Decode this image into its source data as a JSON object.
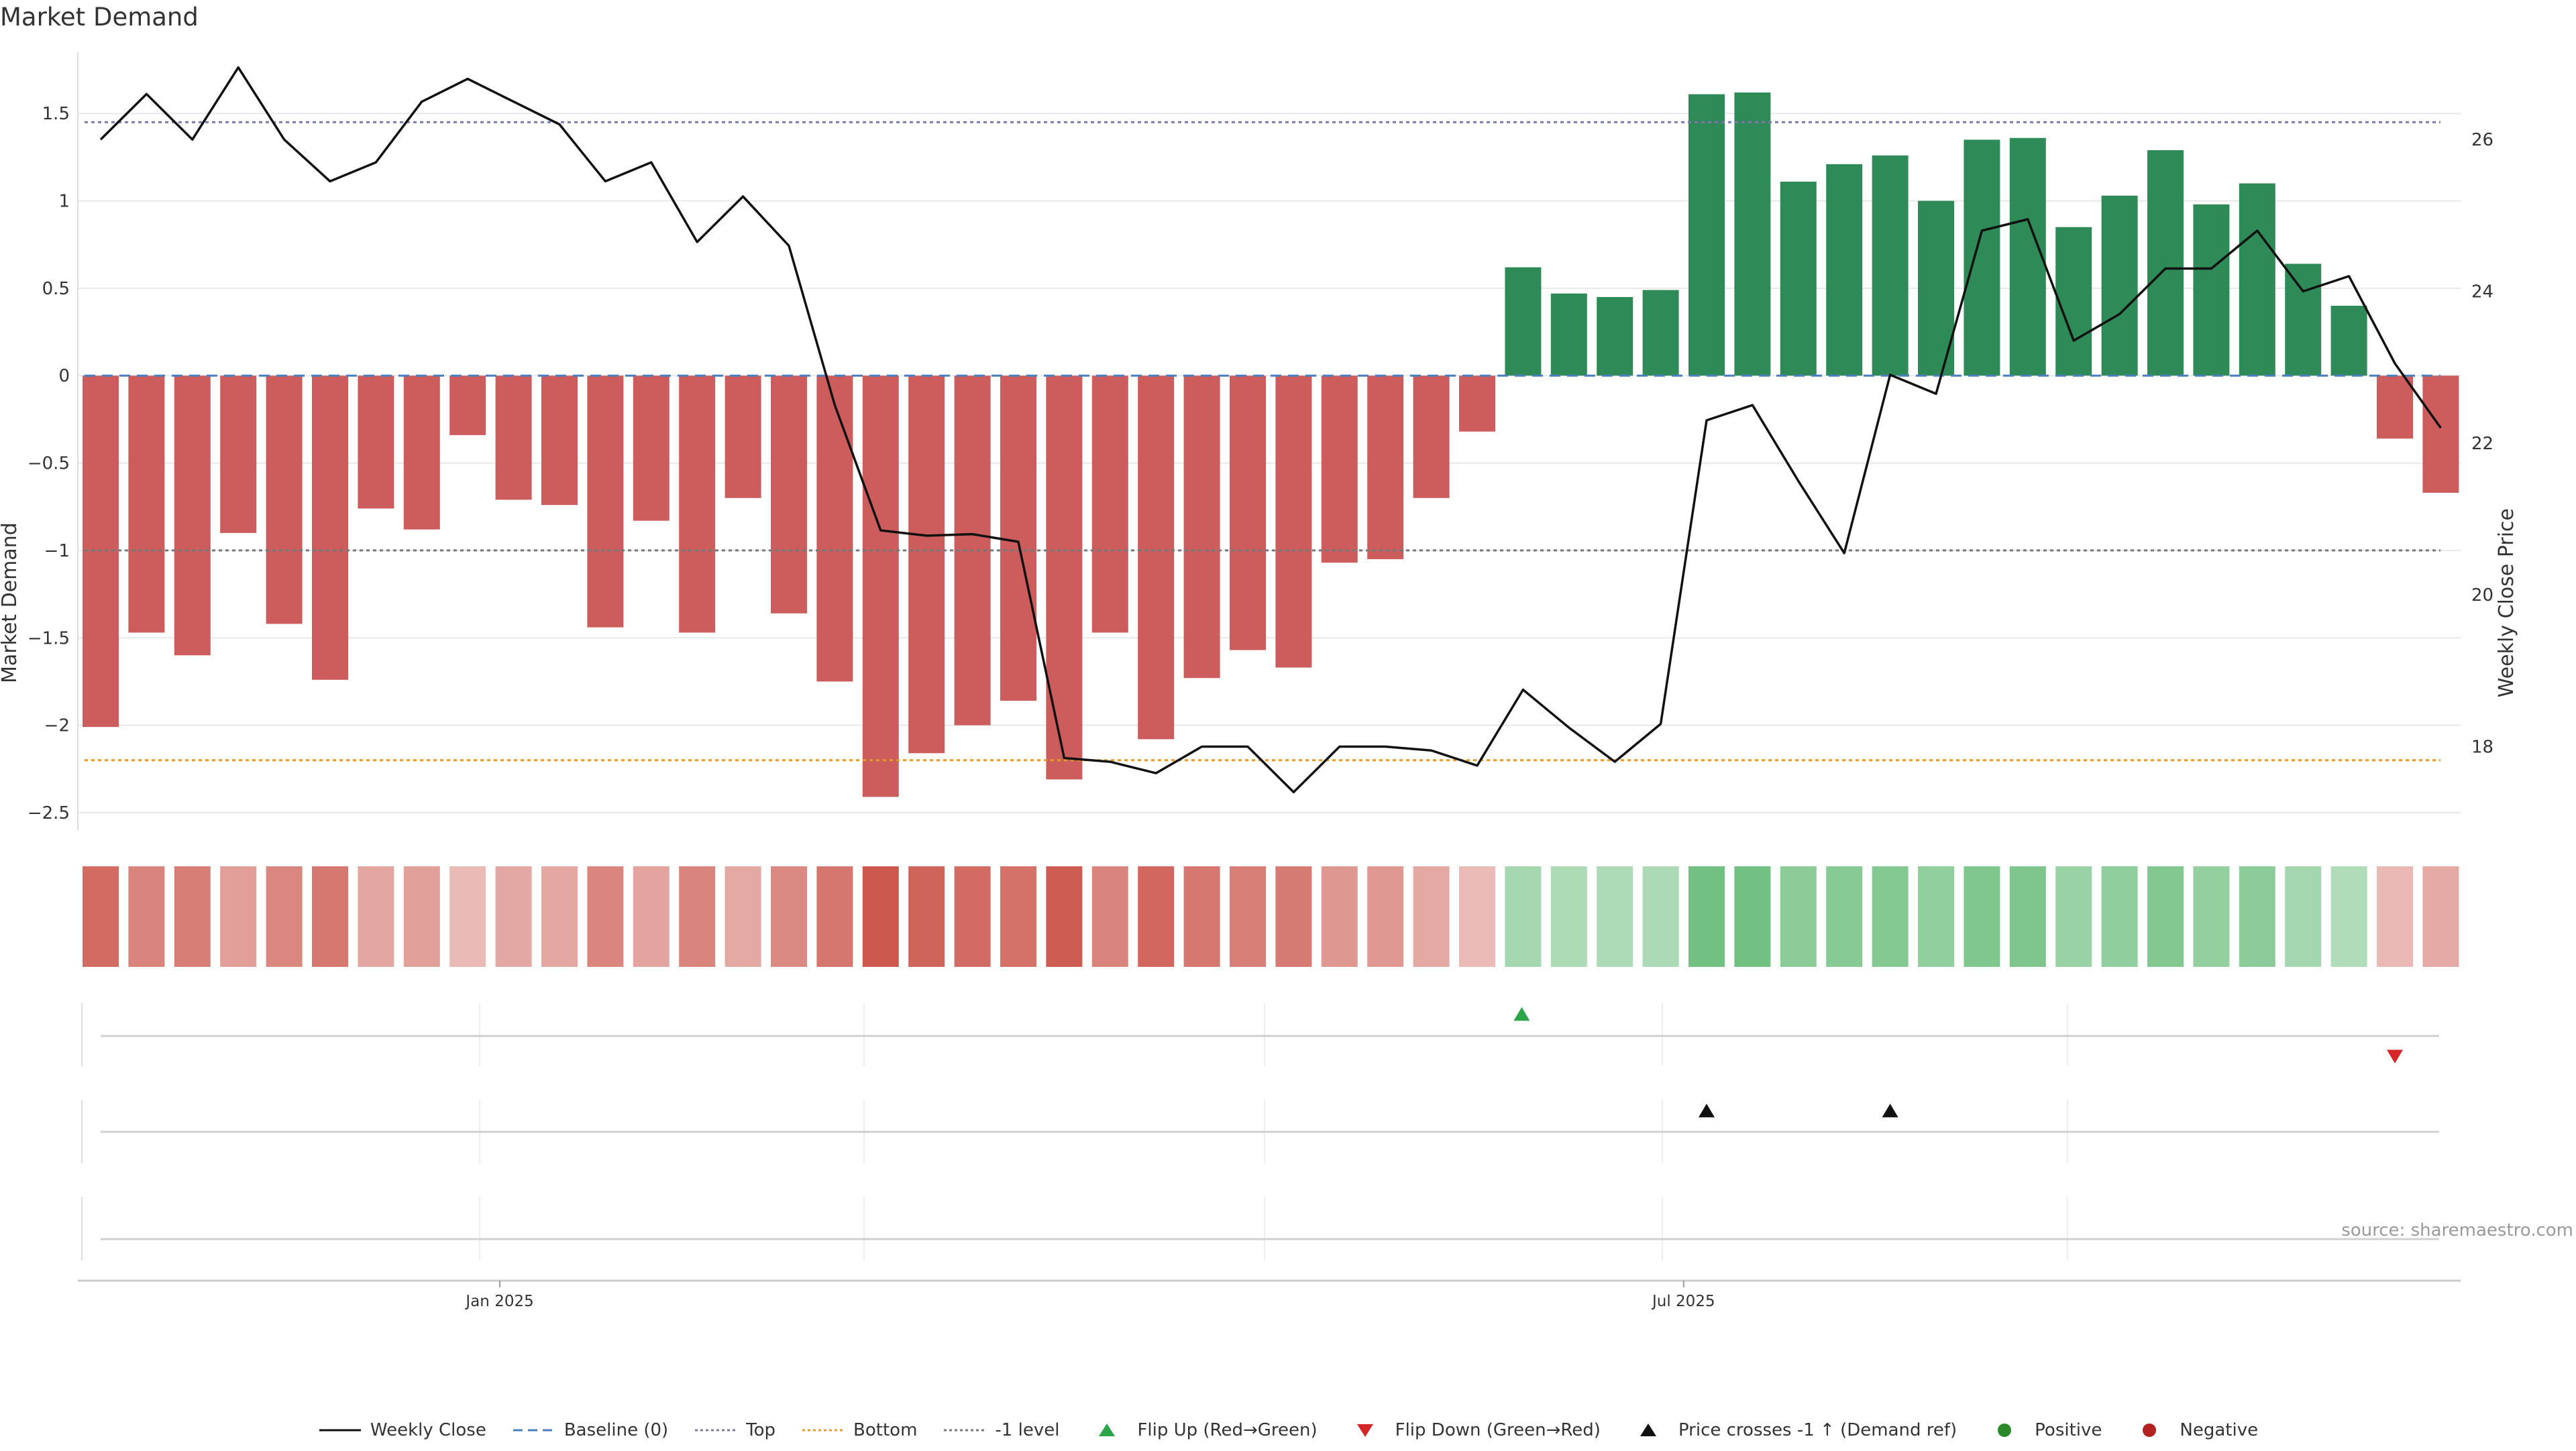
{
  "title": "Market Demand",
  "source": "source: sharemaestro.com",
  "chart_data": {
    "type": "bar",
    "ylabel_left": "Market Demand",
    "ylabel_right": "Weekly Close Price",
    "left_ticks": [
      1.5,
      1,
      0.5,
      0,
      -0.5,
      -1,
      -1.5,
      -2,
      -2.5
    ],
    "left_tick_labels": [
      "1.5",
      "1",
      "0.5",
      "0",
      "−0.5",
      "−1",
      "−1.5",
      "−2",
      "−2.5"
    ],
    "left_ylim": [
      -2.6,
      1.85
    ],
    "right_ticks": [
      26,
      24,
      22,
      20,
      18
    ],
    "right_tick_labels": [
      "26",
      "24",
      "22",
      "20",
      "18"
    ],
    "right_ylim": [
      16.9,
      27.15
    ],
    "x_tick_labels": [
      "Jan 2025",
      "Jul 2025"
    ],
    "x_tick_index": [
      8.7,
      34.5
    ],
    "reference_lines": {
      "top": 1.45,
      "baseline": 0,
      "bottom": -2.2,
      "minus_one": -1
    },
    "demand": [
      -2.01,
      -1.47,
      -1.6,
      -0.9,
      -1.42,
      -1.74,
      -0.76,
      -0.88,
      -0.34,
      -0.71,
      -0.74,
      -1.44,
      -0.83,
      -1.47,
      -0.7,
      -1.36,
      -1.75,
      -2.41,
      -2.16,
      -2.0,
      -1.86,
      -2.31,
      -1.47,
      -2.08,
      -1.73,
      -1.57,
      -1.67,
      -1.07,
      -1.05,
      -0.7,
      -0.32,
      0.62,
      0.47,
      0.45,
      0.49,
      1.61,
      1.62,
      1.11,
      1.21,
      1.26,
      1.0,
      1.35,
      1.36,
      0.85,
      1.03,
      1.29,
      0.98,
      1.1,
      0.64,
      0.4,
      -0.36,
      -0.67
    ],
    "close": [
      26.0,
      26.6,
      26.0,
      26.95,
      26.0,
      25.45,
      25.7,
      26.5,
      26.8,
      26.5,
      26.2,
      25.45,
      25.7,
      24.65,
      25.25,
      24.6,
      22.5,
      20.85,
      20.78,
      20.8,
      20.7,
      17.85,
      17.8,
      17.65,
      18.0,
      18.0,
      17.4,
      18.0,
      18.0,
      17.95,
      17.75,
      18.75,
      18.25,
      17.8,
      18.3,
      22.3,
      22.5,
      21.5,
      20.55,
      22.9,
      22.65,
      24.8,
      24.95,
      23.35,
      23.7,
      24.3,
      24.3,
      24.8,
      24.0,
      24.2,
      23.05,
      22.2
    ],
    "flip_up_index": [
      31
    ],
    "flip_down_index": [
      50
    ],
    "cross_up_index": [
      35,
      39
    ],
    "colors": {
      "positive": "#2e8b57",
      "negative": "#cd5c5c",
      "close": "#111111",
      "baseline": "#4a7fbf",
      "top": "#7a7aa8",
      "bottom": "#e59a2f",
      "minus_one": "#777777",
      "flip_up": "#2ca54a",
      "flip_down": "#d62728",
      "cross": "#111111",
      "pos_dot": "#2a8a2a",
      "neg_dot": "#b22222",
      "grid": "#e8e8e8",
      "axis_text": "#333333"
    },
    "legend": [
      {
        "label": "Weekly Close",
        "kind": "solid",
        "color": "#111111"
      },
      {
        "label": "Baseline (0)",
        "kind": "dash",
        "color": "#4a7fbf"
      },
      {
        "label": "Top",
        "kind": "dot",
        "color": "#7a7aa8"
      },
      {
        "label": "Bottom",
        "kind": "dot",
        "color": "#e59a2f"
      },
      {
        "label": "-1 level",
        "kind": "dot",
        "color": "#777777"
      },
      {
        "label": "Flip Up (Red→Green)",
        "kind": "tri-up",
        "color": "#2ca54a"
      },
      {
        "label": "Flip Down (Green→Red)",
        "kind": "tri-down",
        "color": "#d62728"
      },
      {
        "label": "Price crosses -1 ↑ (Demand ref)",
        "kind": "tri-up",
        "color": "#111111"
      },
      {
        "label": "Positive",
        "kind": "circle",
        "color": "#2a8a2a"
      },
      {
        "label": "Negative",
        "kind": "circle",
        "color": "#b22222"
      }
    ]
  }
}
